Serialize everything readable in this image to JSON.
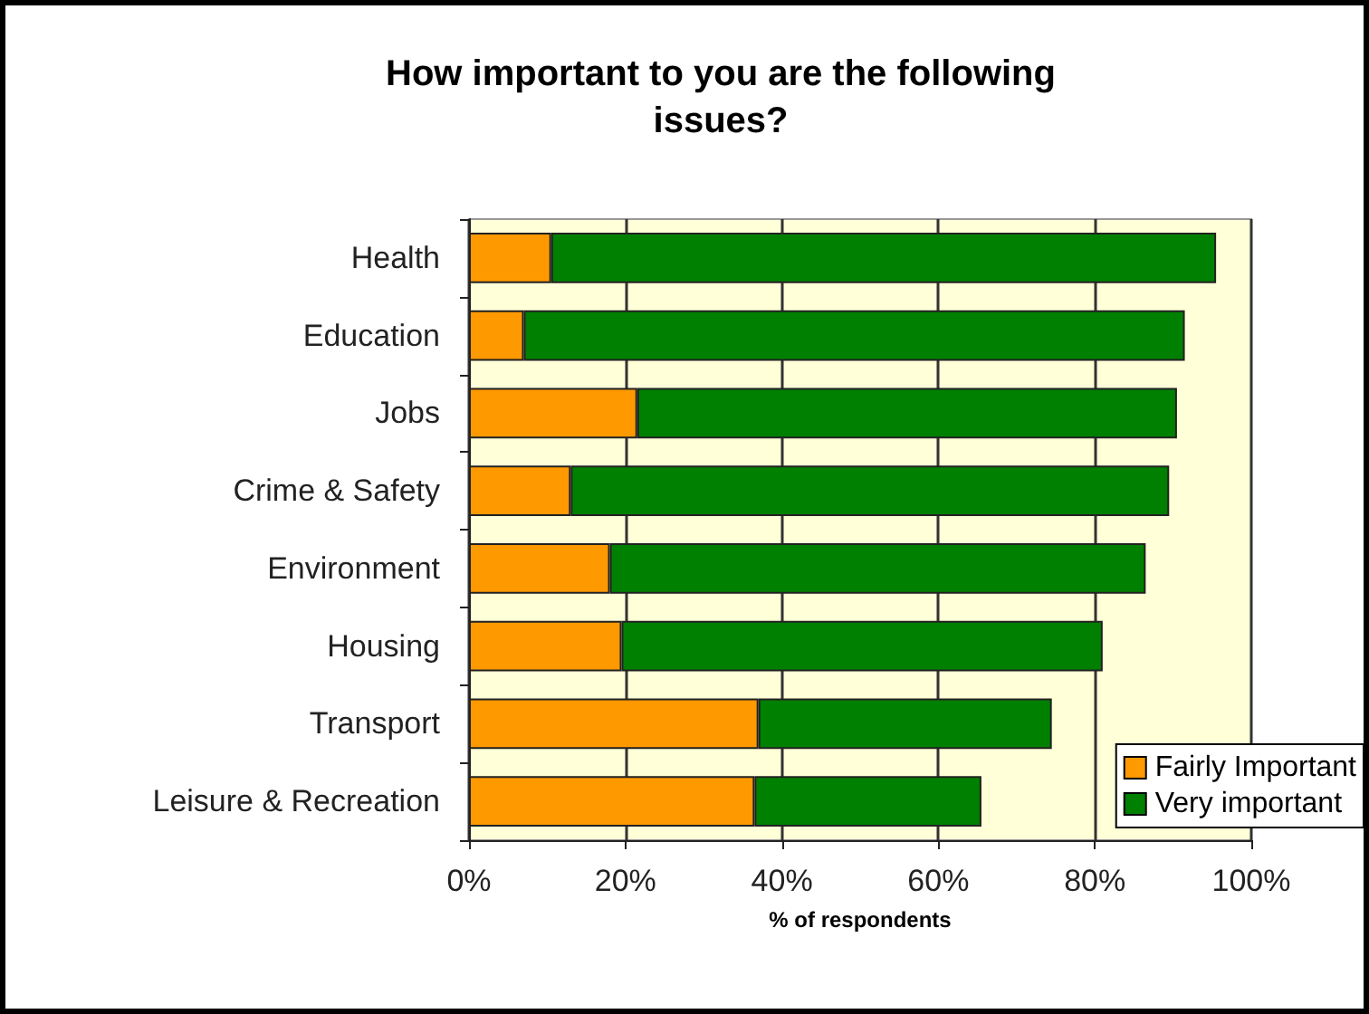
{
  "chart_data": {
    "type": "bar",
    "orientation": "horizontal",
    "stacked": true,
    "title": "How important to you are the following\nissues?",
    "xlabel": "% of respondents",
    "categories": [
      "Health",
      "Education",
      "Jobs",
      "Crime & Safety",
      "Environment",
      "Housing",
      "Transport",
      "Leisure & Recreation"
    ],
    "series": [
      {
        "name": "Fairly Important",
        "color": "#ff9900",
        "values": [
          10.5,
          7,
          21.5,
          13,
          18,
          19.5,
          37,
          36.5
        ]
      },
      {
        "name": "Very important",
        "color": "#008000",
        "values": [
          85,
          84.5,
          69,
          76.5,
          68.5,
          61.5,
          37.5,
          29
        ]
      }
    ],
    "xlim": [
      0,
      100
    ],
    "xticks": [
      {
        "value": 0,
        "label": "0%"
      },
      {
        "value": 20,
        "label": "20%"
      },
      {
        "value": 40,
        "label": "40%"
      },
      {
        "value": 60,
        "label": "60%"
      },
      {
        "value": 80,
        "label": "80%"
      },
      {
        "value": 100,
        "label": "100%"
      }
    ],
    "grid": "x",
    "legend": "bottom right"
  }
}
